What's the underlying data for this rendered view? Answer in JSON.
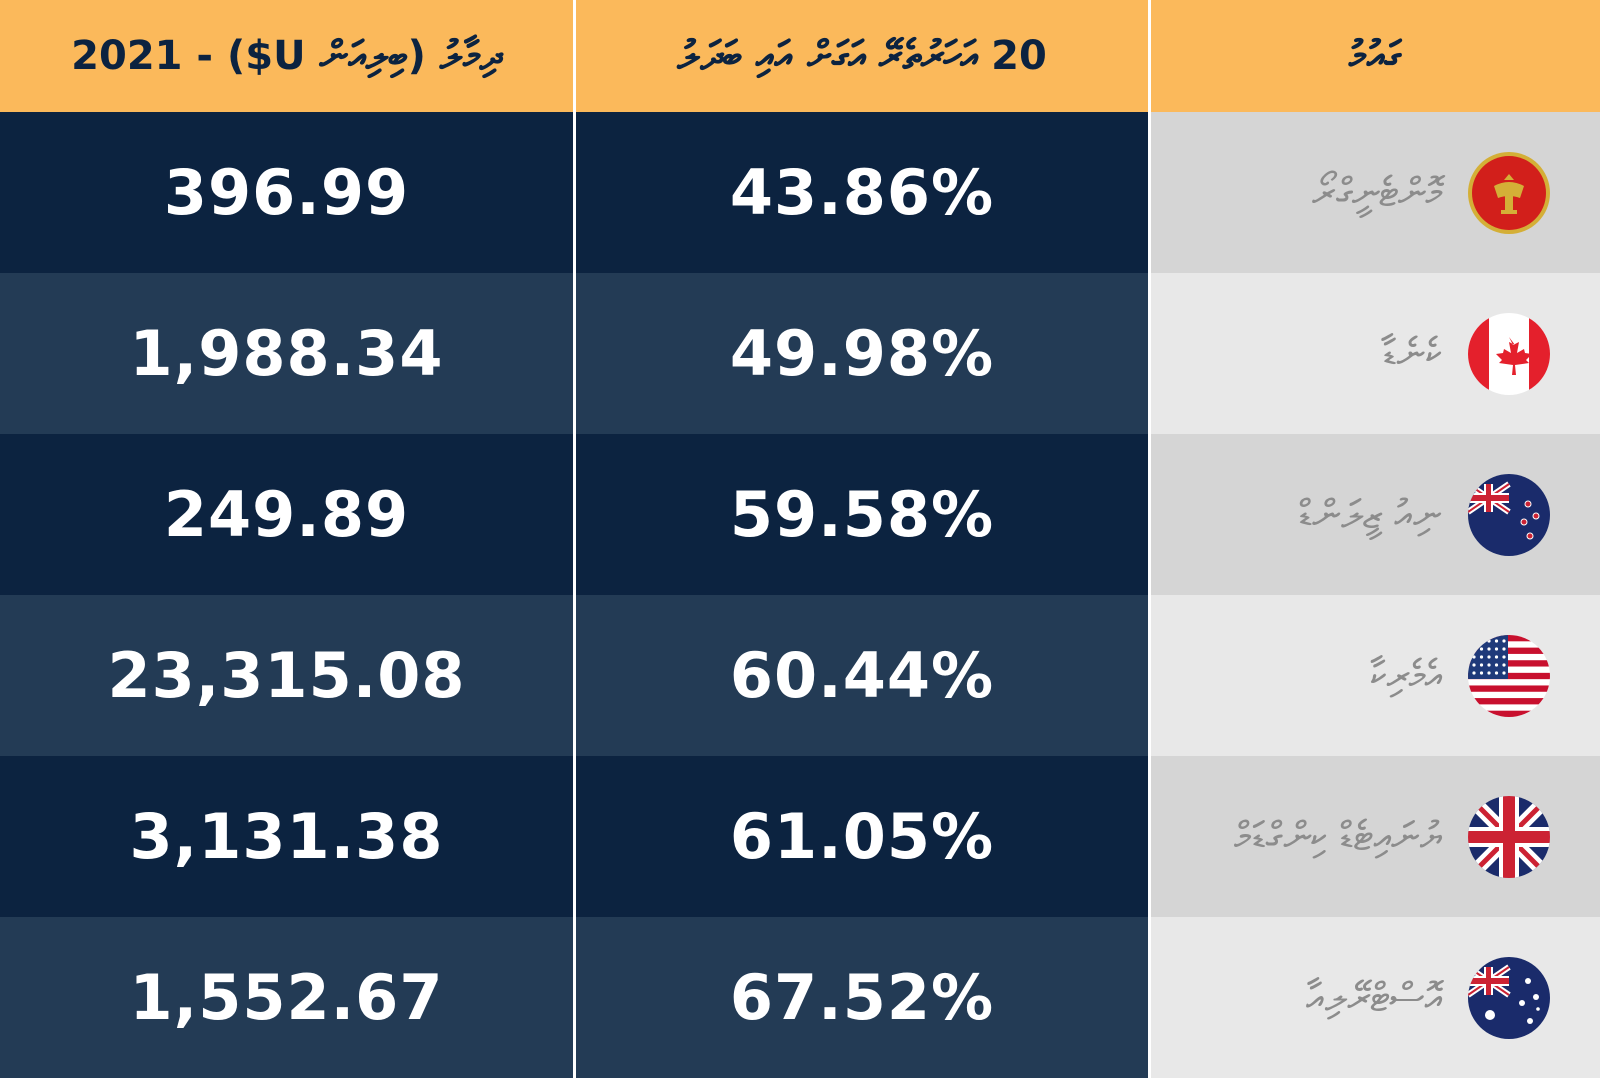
{
  "chart_data": {
    "type": "table",
    "columns": [
      "ދިމާލު (ބިލިއަން U$) - 2021",
      "20 އަހަރުތެރޭ އަގަށް އައި ބަދަލު",
      "ގައުމު"
    ],
    "rows": [
      {
        "country": "މޮންޓެނީގްރޯ",
        "flag_icon": "montenegro-flag-icon",
        "change": "43.86%",
        "value": "396.99"
      },
      {
        "country": "ކެނެޑާ",
        "flag_icon": "canada-flag-icon",
        "change": "49.98%",
        "value": "1,988.34"
      },
      {
        "country": "ނިއު ޒީލަންޑް",
        "flag_icon": "new-zealand-flag-icon",
        "change": "59.58%",
        "value": "249.89"
      },
      {
        "country": "އެމެރިކާ",
        "flag_icon": "usa-flag-icon",
        "change": "60.44%",
        "value": "23,315.08"
      },
      {
        "country": "ޔުނައިޓެޑް ކިންގްޑަމް",
        "flag_icon": "uk-flag-icon",
        "change": "61.05%",
        "value": "3,131.38"
      },
      {
        "country": "އޮސްޓްރޭލިއާ",
        "flag_icon": "australia-flag-icon",
        "change": "67.52%",
        "value": "1,552.67"
      }
    ]
  },
  "colors": {
    "header_bg": "#fbb95b",
    "header_text": "#0c2340",
    "row_dark": "#0c2340",
    "row_light": "#233b55",
    "country_dark": "#d5d5d5",
    "country_light": "#e8e8e8",
    "country_text": "#8c8c8c"
  }
}
